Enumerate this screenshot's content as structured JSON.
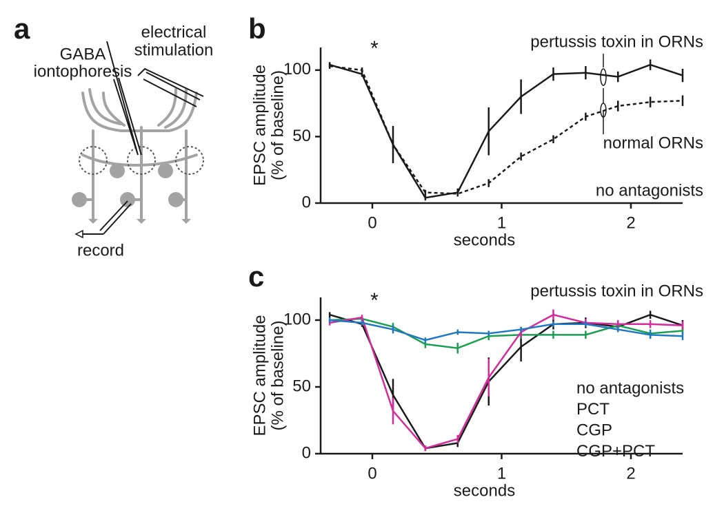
{
  "diagram": {
    "panel_label": "a",
    "stimulation_label": [
      "electrical",
      "stimulation"
    ],
    "iontophoresis_label": [
      "GABA",
      "iontophoresis"
    ],
    "record_label": "record"
  },
  "chart_data": [
    {
      "type": "line",
      "panel_label": "b",
      "ylabel": [
        "EPSC amplitude",
        "(% of baseline)"
      ],
      "xlabel": "seconds",
      "x": [
        -0.33,
        -0.08,
        0.16,
        0.41,
        0.66,
        0.9,
        1.15,
        1.4,
        1.65,
        1.9,
        2.15,
        2.4
      ],
      "xlim": [
        -0.4,
        2.4
      ],
      "xticks": [
        0,
        1,
        2
      ],
      "ylim": [
        0,
        117
      ],
      "yticks": [
        0,
        50,
        100
      ],
      "annotations": [
        "*",
        "no antagonists"
      ],
      "series": [
        {
          "name": "pertussis toxin in ORNs",
          "color": "#1a1a1a",
          "line_style": "solid",
          "values": [
            104,
            97,
            44,
            4,
            8,
            54,
            80,
            97,
            98,
            95,
            104,
            96
          ],
          "errors": [
            2,
            2,
            14,
            2,
            3,
            18,
            13,
            5,
            5,
            4,
            4,
            5
          ]
        },
        {
          "name": "normal ORNs",
          "color": "#1a1a1a",
          "line_style": "dashed",
          "values": [
            103,
            100,
            44,
            8,
            7,
            15,
            35,
            48,
            65,
            73,
            76,
            77
          ],
          "errors": [
            2,
            2,
            3,
            2,
            2,
            3,
            3,
            3,
            3,
            4,
            4,
            4
          ]
        }
      ]
    },
    {
      "type": "line",
      "panel_label": "c",
      "ylabel": [
        "EPSC amplitude",
        "(% of baseline)"
      ],
      "xlabel": "seconds",
      "x": [
        -0.33,
        -0.08,
        0.16,
        0.41,
        0.66,
        0.9,
        1.15,
        1.4,
        1.65,
        1.9,
        2.15,
        2.4
      ],
      "xlim": [
        -0.4,
        2.4
      ],
      "xticks": [
        0,
        1,
        2
      ],
      "ylim": [
        0,
        117
      ],
      "yticks": [
        0,
        50,
        100
      ],
      "annotations": [
        "*",
        "pertussis toxin in ORNs"
      ],
      "series": [
        {
          "name": "no antagonists",
          "color": "#1a1a1a",
          "line_style": "solid",
          "values": [
            104,
            97,
            44,
            4,
            8,
            54,
            80,
            97,
            98,
            95,
            104,
            96
          ],
          "errors": [
            2,
            2,
            12,
            2,
            3,
            18,
            11,
            4,
            4,
            4,
            3,
            4
          ]
        },
        {
          "name": "PCT",
          "color": "#1a9e50",
          "line_style": "solid",
          "values": [
            100,
            101,
            95,
            82,
            79,
            88,
            89,
            89,
            89,
            96,
            90,
            92
          ],
          "errors": [
            2,
            2,
            3,
            3,
            4,
            3,
            3,
            3,
            3,
            3,
            3,
            3
          ]
        },
        {
          "name": "CGP",
          "color": "#d42a9b",
          "line_style": "solid",
          "values": [
            98,
            102,
            32,
            4,
            11,
            57,
            91,
            104,
            98,
            97,
            97,
            96
          ],
          "errors": [
            2,
            2,
            10,
            2,
            3,
            14,
            4,
            4,
            3,
            3,
            3,
            3
          ]
        },
        {
          "name": "CGP+PCT",
          "color": "#1f78c1",
          "line_style": "solid",
          "values": [
            100,
            98,
            93,
            85,
            91,
            90,
            93,
            97,
            97,
            93,
            89,
            88
          ],
          "errors": [
            2,
            2,
            3,
            2,
            2,
            2,
            2,
            2,
            2,
            2,
            3,
            3
          ]
        }
      ]
    }
  ]
}
